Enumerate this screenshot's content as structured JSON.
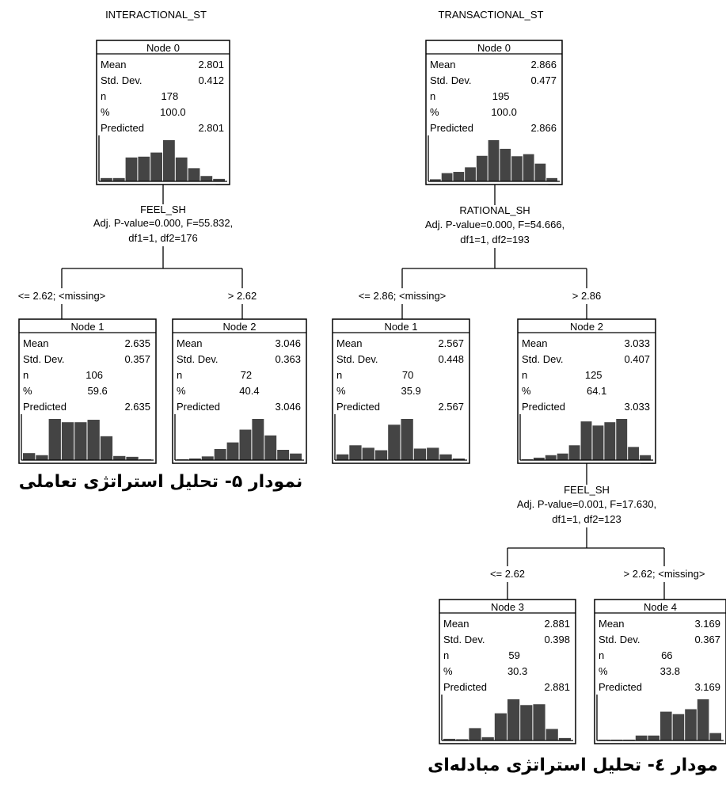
{
  "bar_color": "#444444",
  "trees": [
    {
      "title": "INTERACTIONAL_ST",
      "caption": "نمودار ۵- تحلیل استراتژی تعاملی",
      "nodes": [
        {
          "id": "node-0",
          "label": "Node 0",
          "mean": "2.801",
          "std": "0.412",
          "n": "178",
          "pct": "100.0",
          "predicted": "2.801",
          "hist": [
            0.08,
            0.08,
            0.58,
            0.6,
            0.7,
            1.0,
            0.58,
            0.32,
            0.13,
            0.06
          ]
        },
        {
          "id": "node-1",
          "label": "Node 1",
          "mean": "2.635",
          "std": "0.357",
          "n": "106",
          "pct": "59.6",
          "predicted": "2.635",
          "hist": [
            0.17,
            0.12,
            1.0,
            0.92,
            0.92,
            0.98,
            0.58,
            0.1,
            0.08,
            0.02
          ]
        },
        {
          "id": "node-2",
          "label": "Node 2",
          "mean": "3.046",
          "std": "0.363",
          "n": "72",
          "pct": "40.4",
          "predicted": "3.046",
          "hist": [
            0.02,
            0.04,
            0.09,
            0.27,
            0.43,
            0.74,
            1.0,
            0.6,
            0.25,
            0.16
          ]
        }
      ],
      "splits": [
        {
          "variable": "FEEL_SH",
          "stats": "Adj. P-value=0.000, F=55.832,",
          "df": "df1=1, df2=176",
          "left": "<= 2.62;  <missing>",
          "right": "> 2.62"
        }
      ]
    },
    {
      "title": "TRANSACTIONAL_ST",
      "caption": "مودار ٤- تحلیل استراتژی مبادله‌ای",
      "nodes": [
        {
          "id": "node-0",
          "label": "Node 0",
          "mean": "2.866",
          "std": "0.477",
          "n": "195",
          "pct": "100.0",
          "predicted": "2.866",
          "hist": [
            0.05,
            0.2,
            0.23,
            0.34,
            0.62,
            1.0,
            0.79,
            0.61,
            0.66,
            0.43,
            0.08
          ]
        },
        {
          "id": "node-1",
          "label": "Node 1",
          "mean": "2.567",
          "std": "0.448",
          "n": "70",
          "pct": "35.9",
          "predicted": "2.567",
          "hist": [
            0.14,
            0.36,
            0.3,
            0.24,
            0.86,
            1.0,
            0.28,
            0.3,
            0.14,
            0.04
          ]
        },
        {
          "id": "node-2",
          "label": "Node 2",
          "mean": "3.033",
          "std": "0.407",
          "n": "125",
          "pct": "64.1",
          "predicted": "3.033",
          "hist": [
            0.02,
            0.06,
            0.12,
            0.16,
            0.36,
            0.94,
            0.84,
            0.92,
            1.0,
            0.32,
            0.12
          ]
        },
        {
          "id": "node-3",
          "label": "Node 3",
          "mean": "2.881",
          "std": "0.398",
          "n": "59",
          "pct": "30.3",
          "predicted": "2.881",
          "hist": [
            0.04,
            0.03,
            0.3,
            0.08,
            0.66,
            1.0,
            0.86,
            0.88,
            0.28,
            0.06
          ]
        },
        {
          "id": "node-4",
          "label": "Node 4",
          "mean": "3.169",
          "std": "0.367",
          "n": "66",
          "pct": "33.8",
          "predicted": "3.169",
          "hist": [
            0.02,
            0.02,
            0.02,
            0.12,
            0.12,
            0.7,
            0.64,
            0.76,
            1.0,
            0.18
          ]
        }
      ],
      "splits": [
        {
          "variable": "RATIONAL_SH",
          "stats": "Adj. P-value=0.000, F=54.666,",
          "df": "df1=1, df2=193",
          "left": "<= 2.86;  <missing>",
          "right": "> 2.86"
        },
        {
          "variable": "FEEL_SH",
          "stats": "Adj. P-value=0.001, F=17.630,",
          "df": "df1=1, df2=123",
          "left": "<= 2.62",
          "right": "> 2.62;  <missing>"
        }
      ]
    }
  ],
  "stat_labels": {
    "mean": "Mean",
    "std": "Std. Dev.",
    "n": "n",
    "pct": "%",
    "predicted": "Predicted"
  }
}
